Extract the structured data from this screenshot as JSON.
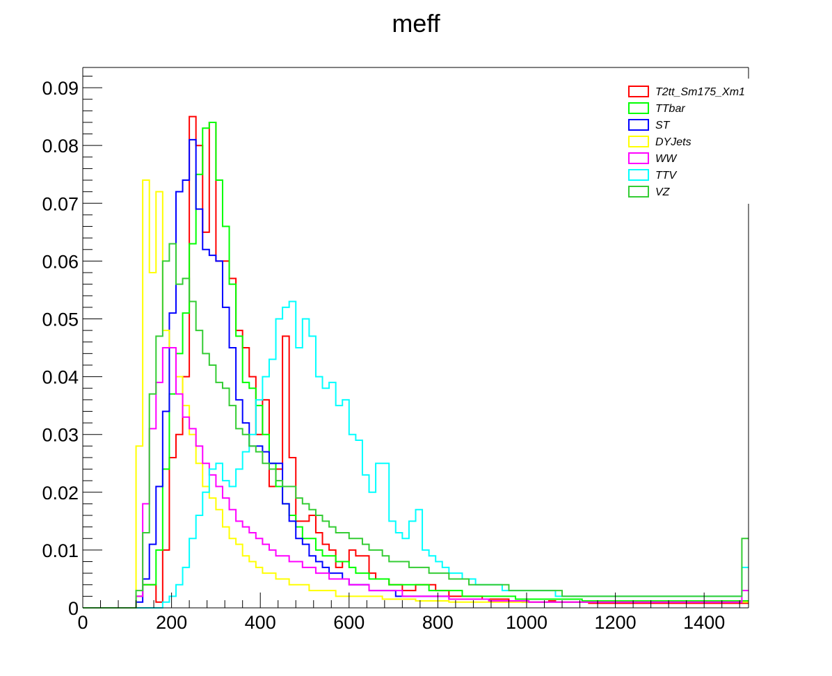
{
  "chart_data": {
    "type": "line",
    "title": "meff",
    "xlabel": "",
    "ylabel": "",
    "xlim": [
      0,
      1500
    ],
    "ylim": [
      0,
      0.0935
    ],
    "x_ticks": [
      "0",
      "200",
      "400",
      "600",
      "800",
      "1000",
      "1200",
      "1400"
    ],
    "y_ticks": [
      "0",
      "0.01",
      "0.02",
      "0.03",
      "0.04",
      "0.05",
      "0.06",
      "0.07",
      "0.08",
      "0.09"
    ],
    "bin_edges": {
      "start": 0,
      "width": 15,
      "count": 100
    },
    "legend_position": "top-right",
    "series": [
      {
        "name": "T2tt_Sm175_Xm1",
        "color": "#ff0000",
        "values": [
          0,
          0,
          0,
          0,
          0,
          0,
          0,
          0,
          0.002,
          0.004,
          0.004,
          0.001,
          0.01,
          0.026,
          0.03,
          0.04,
          0.085,
          0.08,
          0.065,
          0.084,
          0.06,
          0.06,
          0.057,
          0.048,
          0.045,
          0.04,
          0.03,
          0.036,
          0.021,
          0.024,
          0.047,
          0.026,
          0.015,
          0.015,
          0.016,
          0.013,
          0.011,
          0.01,
          0.007,
          0.008,
          0.01,
          0.009,
          0.009,
          0.006,
          0.005,
          0.005,
          0.004,
          0.004,
          0.003,
          0.003,
          0.004,
          0.004,
          0.004,
          0.003,
          0.003,
          0.002,
          0.002,
          0.002,
          0.002,
          0.002,
          0.0015,
          0.0015,
          0.0015,
          0.0015,
          0.0012,
          0.0012,
          0.001,
          0.001,
          0.001,
          0.001,
          0.0012,
          0.001,
          0.001,
          0.001,
          0.001,
          0.001,
          0.0008,
          0.0008,
          0.0008,
          0.0008,
          0.0008,
          0.0008,
          0.0008,
          0.0008,
          0.0008,
          0.0008,
          0.0008,
          0.0008,
          0.0008,
          0.0008,
          0.0008,
          0.0008,
          0.0008,
          0.0008,
          0.0008,
          0.0008,
          0.0008,
          0.0008,
          0.0008,
          0.0008
        ]
      },
      {
        "name": "TTbar",
        "color": "#00ff00",
        "values": [
          0,
          0,
          0,
          0,
          0,
          0,
          0,
          0,
          0.002,
          0.004,
          0.004,
          0.01,
          0.024,
          0.037,
          0.044,
          0.051,
          0.063,
          0.075,
          0.083,
          0.084,
          0.074,
          0.066,
          0.056,
          0.047,
          0.039,
          0.038,
          0.035,
          0.03,
          0.025,
          0.021,
          0.018,
          0.016,
          0.014,
          0.012,
          0.012,
          0.01,
          0.009,
          0.009,
          0.008,
          0.008,
          0.007,
          0.006,
          0.006,
          0.005,
          0.005,
          0.005,
          0.004,
          0.004,
          0.004,
          0.004,
          0.004,
          0.004,
          0.003,
          0.003,
          0.003,
          0.003,
          0.003,
          0.002,
          0.002,
          0.002,
          0.002,
          0.002,
          0.002,
          0.002,
          0.002,
          0.0015,
          0.0015,
          0.0015,
          0.0015,
          0.0015,
          0.0015,
          0.0015,
          0.0015,
          0.0015,
          0.0015,
          0.0012,
          0.0012,
          0.0012,
          0.0012,
          0.0012,
          0.0012,
          0.0012,
          0.0012,
          0.0012,
          0.0012,
          0.0012,
          0.0012,
          0.0012,
          0.0012,
          0.0012,
          0.0012,
          0.0012,
          0.0012,
          0.0012,
          0.0012,
          0.0012,
          0.0012,
          0.0012,
          0.0012,
          0.0012
        ]
      },
      {
        "name": "ST",
        "color": "#0000ff",
        "values": [
          0,
          0,
          0,
          0,
          0,
          0,
          0,
          0,
          0.001,
          0.005,
          0.011,
          0.021,
          0.034,
          0.051,
          0.072,
          0.074,
          0.081,
          0.069,
          0.062,
          0.061,
          0.06,
          0.052,
          0.045,
          0.036,
          0.032,
          0.028,
          0.028,
          0.027,
          0.025,
          0.025,
          0.018,
          0.015,
          0.012,
          0.011,
          0.009,
          0.008,
          0.007,
          0.006,
          0.006,
          0.005,
          0.004,
          0.004,
          0.004,
          0.003,
          0.003,
          0.003,
          0.003,
          0.002,
          0.002,
          0.002,
          0.002,
          0.002,
          0.002,
          0.002,
          0.002,
          0.0015,
          0.0015,
          0.0015,
          0.0015,
          0.0015,
          0.0015,
          0.0012,
          0.0012,
          0.0012,
          0.0012,
          0.0012,
          0.001,
          0.001,
          0.001,
          0.001,
          0.001,
          0.001,
          0.001,
          0.001,
          0.001,
          0.001,
          0.001,
          0.001,
          0.001,
          0.001,
          0.001,
          0.001,
          0.001,
          0.001,
          0.001,
          0.001,
          0.001,
          0.001,
          0.001,
          0.001,
          0.001,
          0.001,
          0.001,
          0.001,
          0.001,
          0.001,
          0.001,
          0.001,
          0.001,
          0.001
        ]
      },
      {
        "name": "DYJets",
        "color": "#ffff00",
        "values": [
          0,
          0,
          0,
          0,
          0,
          0,
          0,
          0,
          0.028,
          0.074,
          0.058,
          0.072,
          0.048,
          0.045,
          0.04,
          0.035,
          0.03,
          0.025,
          0.021,
          0.019,
          0.017,
          0.014,
          0.012,
          0.011,
          0.009,
          0.008,
          0.007,
          0.006,
          0.006,
          0.005,
          0.005,
          0.004,
          0.004,
          0.004,
          0.003,
          0.003,
          0.003,
          0.003,
          0.002,
          0.002,
          0.002,
          0.002,
          0.002,
          0.002,
          0.002,
          0.0015,
          0.0015,
          0.0015,
          0.0015,
          0.0015,
          0.0012,
          0.0012,
          0.0012,
          0.0012,
          0.0012,
          0.001,
          0.001,
          0.001,
          0.001,
          0.001,
          0.001,
          0.001,
          0.001,
          0.001,
          0.001,
          0.001,
          0.001,
          0.001,
          0.001,
          0.001,
          0.001,
          0.001,
          0.001,
          0.001,
          0.001,
          0.001,
          0.001,
          0.001,
          0.001,
          0.001,
          0.001,
          0.001,
          0.001,
          0.001,
          0.001,
          0.001,
          0.001,
          0.001,
          0.001,
          0.001,
          0.001,
          0.001,
          0.001,
          0.001,
          0.001,
          0.001,
          0.001,
          0.001,
          0.001,
          0.001
        ]
      },
      {
        "name": "WW",
        "color": "#ff00ff",
        "values": [
          0,
          0,
          0,
          0,
          0,
          0,
          0,
          0,
          0.002,
          0.018,
          0.031,
          0.039,
          0.045,
          0.045,
          0.037,
          0.033,
          0.031,
          0.028,
          0.025,
          0.023,
          0.021,
          0.019,
          0.017,
          0.015,
          0.014,
          0.013,
          0.012,
          0.011,
          0.01,
          0.009,
          0.009,
          0.008,
          0.008,
          0.007,
          0.007,
          0.006,
          0.006,
          0.005,
          0.005,
          0.005,
          0.004,
          0.004,
          0.004,
          0.003,
          0.003,
          0.003,
          0.003,
          0.003,
          0.002,
          0.002,
          0.002,
          0.002,
          0.002,
          0.002,
          0.002,
          0.0015,
          0.0015,
          0.0015,
          0.0015,
          0.0015,
          0.0015,
          0.0012,
          0.0012,
          0.0012,
          0.0012,
          0.0012,
          0.0012,
          0.001,
          0.001,
          0.001,
          0.001,
          0.001,
          0.001,
          0.001,
          0.001,
          0.001,
          0.001,
          0.001,
          0.001,
          0.001,
          0.001,
          0.001,
          0.001,
          0.001,
          0.001,
          0.001,
          0.001,
          0.001,
          0.001,
          0.001,
          0.001,
          0.001,
          0.001,
          0.001,
          0.001,
          0.001,
          0.001,
          0.001,
          0.001,
          0.003
        ]
      },
      {
        "name": "TTV",
        "color": "#00ffff",
        "values": [
          0,
          0,
          0,
          0,
          0,
          0,
          0,
          0,
          0,
          0,
          0,
          0,
          0.001,
          0.002,
          0.004,
          0.007,
          0.012,
          0.016,
          0.02,
          0.024,
          0.025,
          0.022,
          0.021,
          0.024,
          0.027,
          0.03,
          0.036,
          0.04,
          0.043,
          0.05,
          0.052,
          0.053,
          0.045,
          0.05,
          0.047,
          0.04,
          0.038,
          0.039,
          0.035,
          0.036,
          0.03,
          0.029,
          0.023,
          0.02,
          0.025,
          0.025,
          0.015,
          0.013,
          0.012,
          0.015,
          0.017,
          0.01,
          0.009,
          0.008,
          0.007,
          0.006,
          0.006,
          0.005,
          0.005,
          0.004,
          0.004,
          0.004,
          0.004,
          0.003,
          0.003,
          0.003,
          0.003,
          0.003,
          0.003,
          0.003,
          0.003,
          0.002,
          0.002,
          0.002,
          0.002,
          0.002,
          0.002,
          0.002,
          0.002,
          0.002,
          0.002,
          0.002,
          0.002,
          0.002,
          0.002,
          0.002,
          0.002,
          0.002,
          0.002,
          0.002,
          0.002,
          0.002,
          0.002,
          0.002,
          0.002,
          0.002,
          0.002,
          0.002,
          0.002,
          0.007
        ]
      },
      {
        "name": "VZ",
        "color": "#33cc33",
        "values": [
          0,
          0,
          0,
          0,
          0,
          0,
          0,
          0,
          0.003,
          0.013,
          0.037,
          0.047,
          0.06,
          0.063,
          0.056,
          0.057,
          0.053,
          0.048,
          0.044,
          0.042,
          0.039,
          0.038,
          0.035,
          0.031,
          0.03,
          0.028,
          0.027,
          0.025,
          0.024,
          0.022,
          0.021,
          0.021,
          0.019,
          0.018,
          0.017,
          0.016,
          0.015,
          0.014,
          0.013,
          0.013,
          0.012,
          0.012,
          0.011,
          0.01,
          0.01,
          0.009,
          0.008,
          0.008,
          0.008,
          0.007,
          0.007,
          0.007,
          0.006,
          0.006,
          0.006,
          0.005,
          0.005,
          0.005,
          0.004,
          0.004,
          0.004,
          0.004,
          0.004,
          0.004,
          0.003,
          0.003,
          0.003,
          0.003,
          0.003,
          0.003,
          0.003,
          0.003,
          0.002,
          0.002,
          0.002,
          0.002,
          0.002,
          0.002,
          0.002,
          0.002,
          0.002,
          0.002,
          0.002,
          0.002,
          0.002,
          0.002,
          0.002,
          0.002,
          0.002,
          0.002,
          0.002,
          0.002,
          0.002,
          0.002,
          0.002,
          0.002,
          0.002,
          0.002,
          0.002,
          0.012
        ]
      }
    ]
  }
}
